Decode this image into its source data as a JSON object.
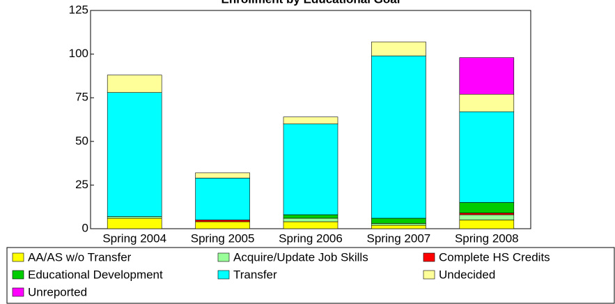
{
  "chart_data": {
    "type": "stacked_bar",
    "title": "Enrollment by Educational Goal",
    "categories": [
      "Spring 2004",
      "Spring 2005",
      "Spring 2006",
      "Spring 2007",
      "Spring 2008"
    ],
    "series": [
      {
        "name": "AA/AS w/o Transfer",
        "color": "#ffff00",
        "values": [
          6,
          4,
          4,
          2,
          5
        ]
      },
      {
        "name": "Acquire/Update Job Skills",
        "color": "#99ff99",
        "values": [
          1,
          0,
          2,
          1,
          3
        ]
      },
      {
        "name": "Complete HS Credits",
        "color": "#ff0000",
        "values": [
          0,
          1,
          0,
          0,
          1
        ]
      },
      {
        "name": "Educational Development",
        "color": "#00cc00",
        "values": [
          0,
          0,
          2,
          3,
          6
        ]
      },
      {
        "name": "Transfer",
        "color": "#00ffff",
        "values": [
          71,
          24,
          52,
          93,
          52
        ]
      },
      {
        "name": "Undecided",
        "color": "#ffff99",
        "values": [
          10,
          3,
          4,
          8,
          10
        ]
      },
      {
        "name": "Unreported",
        "color": "#ff00ff",
        "values": [
          0,
          0,
          0,
          0,
          21
        ]
      }
    ],
    "ylim": [
      0,
      125
    ],
    "yticks": [
      0,
      25,
      50,
      75,
      100,
      125
    ]
  }
}
